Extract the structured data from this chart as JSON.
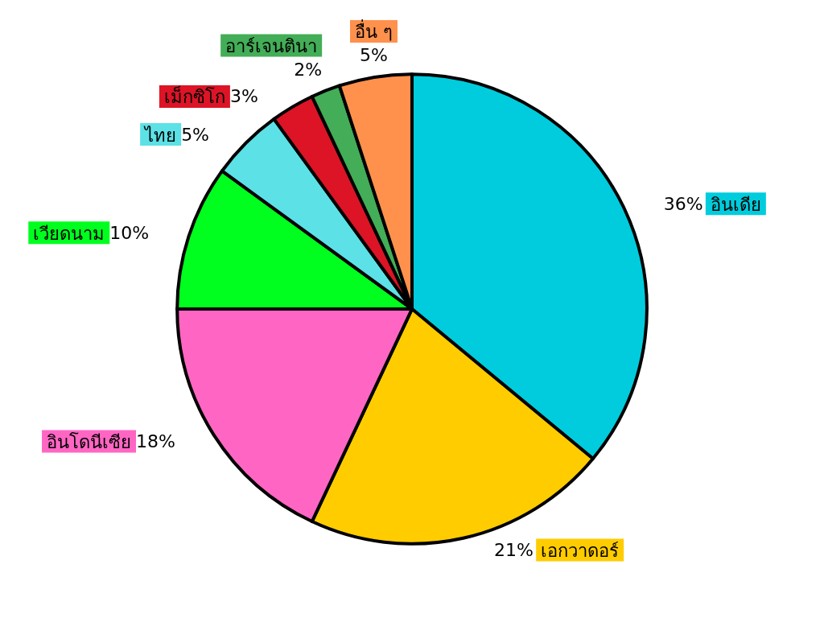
{
  "chart_data": {
    "type": "pie",
    "categories": [
      "อินเดีย",
      "เอกวาดอร์",
      "อินโดนีเซีย",
      "เวียดนาม",
      "ไทย",
      "เม็กซิโก",
      "อาร์เจนตินา",
      "อื่น ๆ"
    ],
    "values": [
      36,
      21,
      18,
      10,
      5,
      3,
      2,
      5
    ],
    "value_labels": [
      "36%",
      "21%",
      "18%",
      "10%",
      "5%",
      "3%",
      "2%",
      "5%"
    ],
    "colors": [
      "#00ccdd",
      "#ffcc00",
      "#ff66c4",
      "#00ff1e",
      "#5ce1e6",
      "#dc1426",
      "#43ad57",
      "#ff914d"
    ],
    "legend": false
  }
}
